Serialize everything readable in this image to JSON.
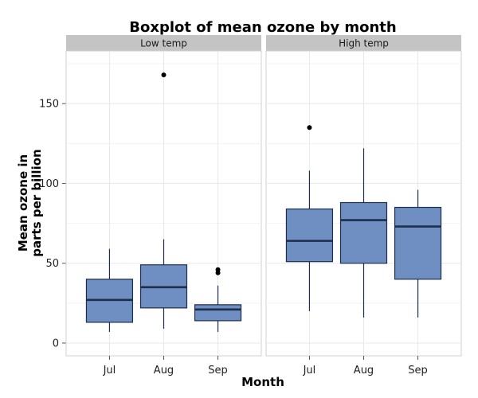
{
  "chart_data": {
    "type": "boxplot",
    "title": "Boxplot of mean ozone by month",
    "xlabel": "Month",
    "ylabel_lines": [
      "Mean ozone in",
      "parts per billion"
    ],
    "ylim": [
      -8,
      183
    ],
    "yticks": [
      0,
      50,
      100,
      150
    ],
    "categories": [
      "Jul",
      "Aug",
      "Sep"
    ],
    "grid": true,
    "colors": {
      "box_fill": "#6f8fc2",
      "box_stroke": "#1c2e4a",
      "median": "#1c2e4a",
      "strip_bg": "#c4c4c4",
      "grid": "#e8e8e8"
    },
    "panels": [
      {
        "name": "Low temp",
        "boxes": [
          {
            "category": "Jul",
            "lower_whisker": 7,
            "q1": 13,
            "median": 27,
            "q3": 40,
            "upper_whisker": 59,
            "outliers": []
          },
          {
            "category": "Aug",
            "lower_whisker": 9,
            "q1": 22,
            "median": 35,
            "q3": 49,
            "upper_whisker": 65,
            "outliers": [
              168
            ]
          },
          {
            "category": "Sep",
            "lower_whisker": 7,
            "q1": 14,
            "median": 21,
            "q3": 24,
            "upper_whisker": 36,
            "outliers": [
              44,
              46
            ]
          }
        ]
      },
      {
        "name": "High temp",
        "boxes": [
          {
            "category": "Jul",
            "lower_whisker": 20,
            "q1": 51,
            "median": 64,
            "q3": 84,
            "upper_whisker": 108,
            "outliers": [
              135
            ]
          },
          {
            "category": "Aug",
            "lower_whisker": 16,
            "q1": 50,
            "median": 77,
            "q3": 88,
            "upper_whisker": 122,
            "outliers": []
          },
          {
            "category": "Sep",
            "lower_whisker": 16,
            "q1": 40,
            "median": 73,
            "q3": 85,
            "upper_whisker": 96,
            "outliers": []
          }
        ]
      }
    ]
  }
}
